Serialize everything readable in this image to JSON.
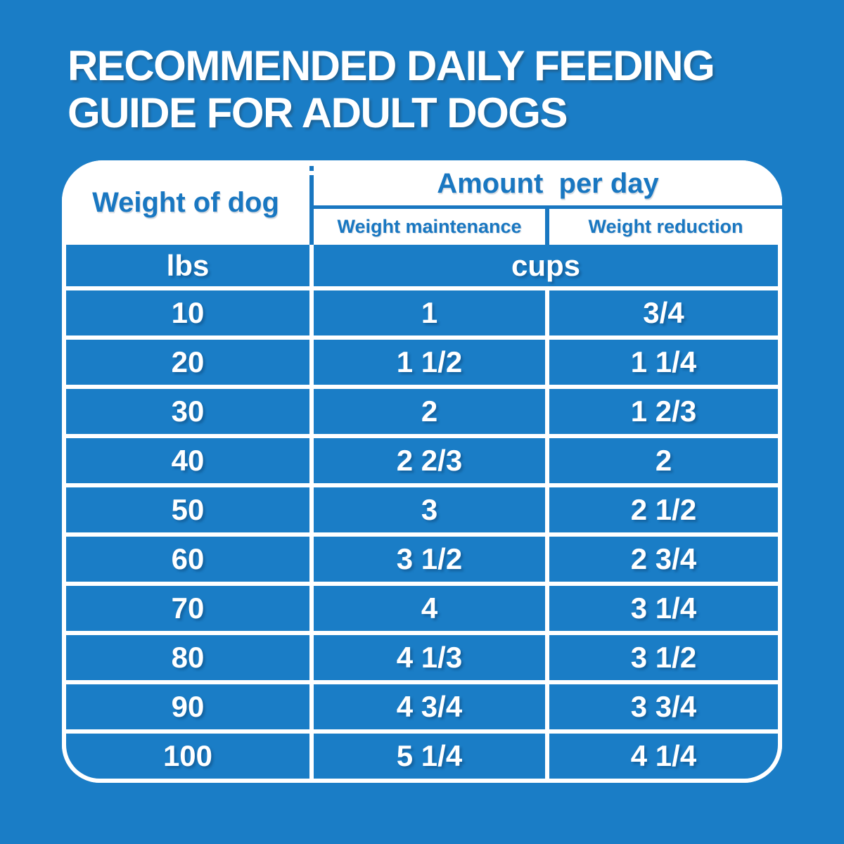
{
  "colors": {
    "background_blue": "#1A7DC6",
    "header_text_blue": "#1977C1",
    "text_white": "#FFFFFF"
  },
  "title": {
    "line1": "RECOMMENDED DAILY FEEDING",
    "line2": "GUIDE FOR ADULT DOGS"
  },
  "table": {
    "header": {
      "weight_col": "Weight of dog",
      "amount_group": "Amount  per day",
      "sub_maintenance": "Weight maintenance",
      "sub_reduction": "Weight reduction"
    },
    "units": {
      "weight": "lbs",
      "amount": "cups"
    },
    "rows": [
      {
        "weight": "10",
        "maintenance": "1",
        "reduction": "3/4"
      },
      {
        "weight": "20",
        "maintenance": "1 1/2",
        "reduction": "1 1/4"
      },
      {
        "weight": "30",
        "maintenance": "2",
        "reduction": "1 2/3"
      },
      {
        "weight": "40",
        "maintenance": "2 2/3",
        "reduction": "2"
      },
      {
        "weight": "50",
        "maintenance": "3",
        "reduction": "2 1/2"
      },
      {
        "weight": "60",
        "maintenance": "3 1/2",
        "reduction": "2 3/4"
      },
      {
        "weight": "70",
        "maintenance": "4",
        "reduction": "3 1/4"
      },
      {
        "weight": "80",
        "maintenance": "4 1/3",
        "reduction": "3 1/2"
      },
      {
        "weight": "90",
        "maintenance": "4 3/4",
        "reduction": "3 3/4"
      },
      {
        "weight": "100",
        "maintenance": "5 1/4",
        "reduction": "4 1/4"
      }
    ]
  },
  "chart_data": {
    "type": "table",
    "title": "RECOMMENDED DAILY FEEDING GUIDE FOR ADULT DOGS",
    "columns": [
      "Weight of dog (lbs)",
      "Amount per day - Weight maintenance (cups)",
      "Amount per day - Weight reduction (cups)"
    ],
    "rows": [
      [
        10,
        "1",
        "3/4"
      ],
      [
        20,
        "1 1/2",
        "1 1/4"
      ],
      [
        30,
        "2",
        "1 2/3"
      ],
      [
        40,
        "2 2/3",
        "2"
      ],
      [
        50,
        "3",
        "2 1/2"
      ],
      [
        60,
        "3 1/2",
        "2 3/4"
      ],
      [
        70,
        "4",
        "3 1/4"
      ],
      [
        80,
        "4 1/3",
        "3 1/2"
      ],
      [
        90,
        "4 3/4",
        "3 3/4"
      ],
      [
        100,
        "5 1/4",
        "4 1/4"
      ]
    ]
  }
}
